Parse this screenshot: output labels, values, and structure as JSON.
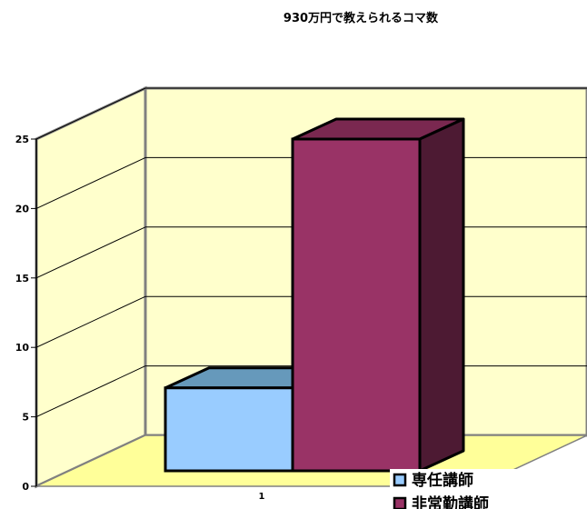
{
  "chart_data": {
    "type": "bar",
    "title": "930万円で教えられるコマ数",
    "categories": [
      "1"
    ],
    "series": [
      {
        "name": "専任講師",
        "values": [
          6
        ],
        "color": "#99ccff",
        "top_color": "#6699bb",
        "side_color": "#4477aa"
      },
      {
        "name": "非常勤講師",
        "values": [
          24
        ],
        "color": "#993366",
        "top_color": "#7a2850",
        "side_color": "#4d1a33"
      }
    ],
    "ylim": [
      0,
      25
    ],
    "yticks": [
      "0",
      "5",
      "10",
      "15",
      "20",
      "25"
    ],
    "grid": true,
    "legend_position": "bottom-right",
    "wall_color": "#ffffcc",
    "floor_color": "#ffff99"
  }
}
